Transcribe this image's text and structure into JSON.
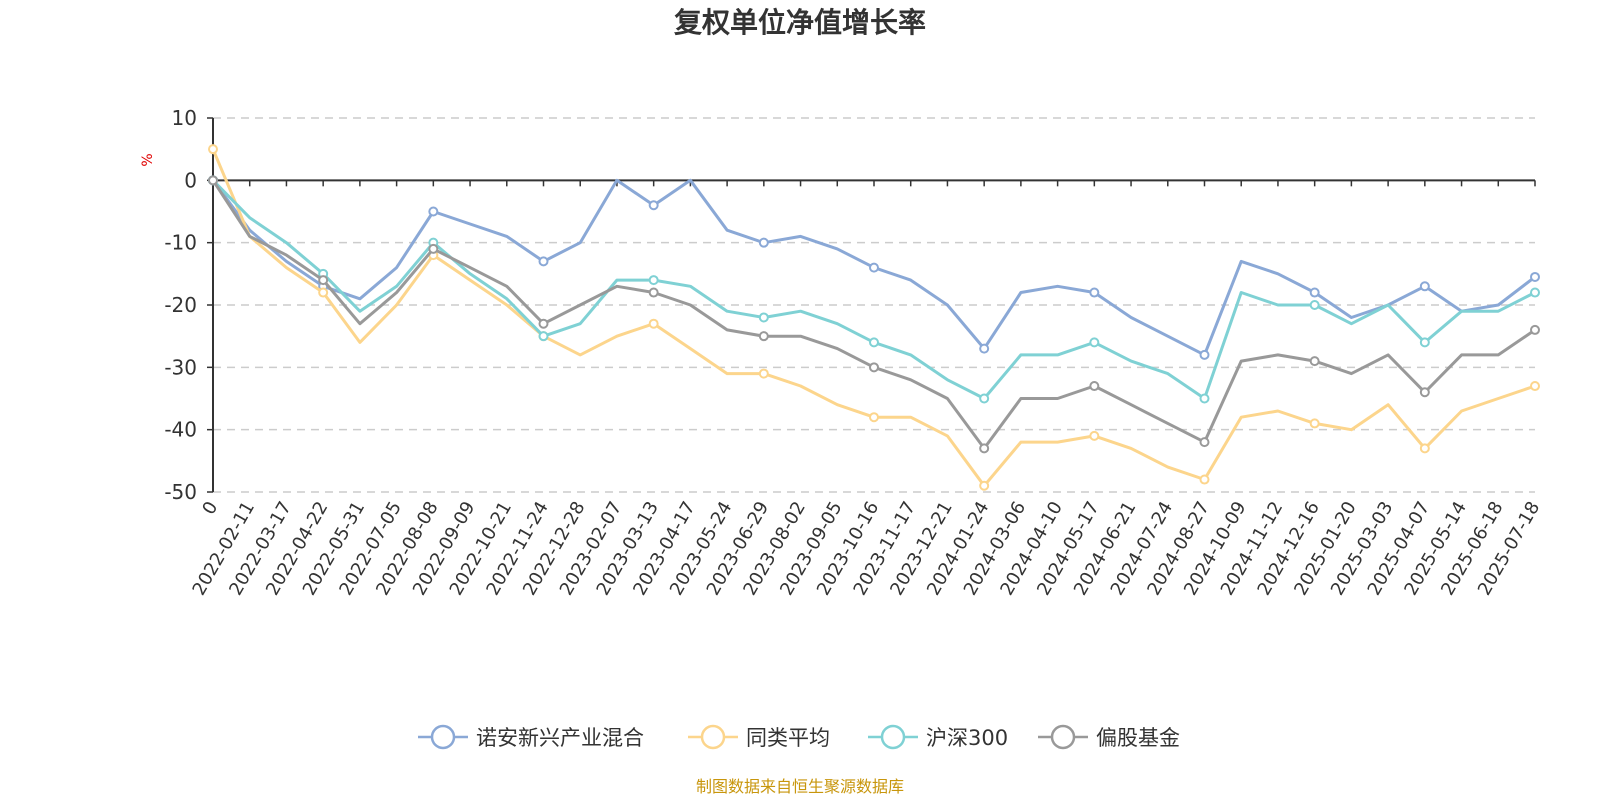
{
  "chart_data": {
    "type": "line",
    "title": "复权单位净值增长率",
    "ylabel": "%",
    "ylim": [
      -50,
      10
    ],
    "yticks": [
      10,
      0,
      -10,
      -20,
      -30,
      -40,
      -50
    ],
    "grid": true,
    "legend_position": "bottom",
    "x": [
      "0",
      "2022-02-11",
      "2022-03-17",
      "2022-04-22",
      "2022-05-31",
      "2022-07-05",
      "2022-08-08",
      "2022-09-09",
      "2022-10-21",
      "2022-11-24",
      "2022-12-28",
      "2023-02-07",
      "2023-03-13",
      "2023-04-17",
      "2023-05-24",
      "2023-06-29",
      "2023-08-02",
      "2023-09-05",
      "2023-10-16",
      "2023-11-17",
      "2023-12-21",
      "2024-01-24",
      "2024-03-06",
      "2024-04-10",
      "2024-05-17",
      "2024-06-21",
      "2024-07-24",
      "2024-08-27",
      "2024-10-09",
      "2024-11-12",
      "2024-12-16",
      "2025-01-20",
      "2025-03-03",
      "2025-04-07",
      "2025-05-14",
      "2025-06-18",
      "2025-07-18"
    ],
    "series": [
      {
        "name": "诺安新兴产业混合",
        "color": "#8aa8d6",
        "values": [
          0,
          -8,
          -13,
          -17,
          -19,
          -14,
          -5,
          -7,
          -9,
          -13,
          -10,
          0,
          -4,
          0,
          -8,
          -10,
          -9,
          -11,
          -14,
          -16,
          -20,
          -27,
          -18,
          -17,
          -18,
          -22,
          -25,
          -28,
          -13,
          -15,
          -18,
          -22,
          -20,
          -17,
          -21,
          -20,
          -15.5
        ]
      },
      {
        "name": "同类平均",
        "color": "#fcd58c",
        "values": [
          5,
          -9,
          -14,
          -18,
          -26,
          -20,
          -12,
          -16,
          -20,
          -25,
          -28,
          -25,
          -23,
          -27,
          -31,
          -31,
          -33,
          -36,
          -38,
          -38,
          -41,
          -49,
          -42,
          -42,
          -41,
          -43,
          -46,
          -48,
          -38,
          -37,
          -39,
          -40,
          -36,
          -43,
          -37,
          -35,
          -33
        ]
      },
      {
        "name": "沪深300",
        "color": "#7fd1d4",
        "values": [
          0,
          -6,
          -10,
          -15,
          -21,
          -17,
          -10,
          -15,
          -19,
          -25,
          -23,
          -16,
          -16,
          -17,
          -21,
          -22,
          -21,
          -23,
          -26,
          -28,
          -32,
          -35,
          -28,
          -28,
          -26,
          -29,
          -31,
          -35,
          -18,
          -20,
          -20,
          -23,
          -20,
          -26,
          -21,
          -21,
          -18
        ]
      },
      {
        "name": "偏股基金",
        "color": "#999999",
        "values": [
          0,
          -9,
          -12,
          -16,
          -23,
          -18,
          -11,
          -14,
          -17,
          -23,
          -20,
          -17,
          -18,
          -20,
          -24,
          -25,
          -25,
          -27,
          -30,
          -32,
          -35,
          -43,
          -35,
          -35,
          -33,
          -36,
          -39,
          -42,
          -29,
          -28,
          -29,
          -31,
          -28,
          -34,
          -28,
          -28,
          -24
        ]
      }
    ],
    "source_note": "制图数据来自恒生聚源数据库"
  }
}
